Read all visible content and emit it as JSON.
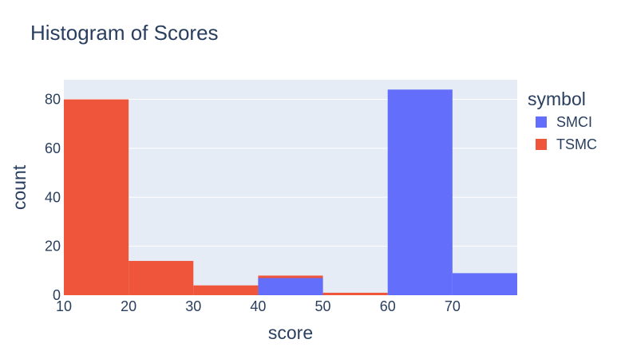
{
  "chart_data": {
    "type": "bar",
    "title": "Histogram of Scores",
    "xlabel": "score",
    "ylabel": "count",
    "bar_mode": "overlay",
    "xlim": [
      10,
      80
    ],
    "ylim": [
      0,
      88
    ],
    "x_ticks": [
      10,
      20,
      30,
      40,
      50,
      60,
      70
    ],
    "y_ticks": [
      0,
      20,
      40,
      60,
      80
    ],
    "grid": true,
    "legend": {
      "title": "symbol",
      "placement": "right"
    },
    "series": [
      {
        "name": "TSMC",
        "color": "#EF553B",
        "bins": [
          {
            "x0": 10,
            "x1": 20,
            "value": 80
          },
          {
            "x0": 20,
            "x1": 30,
            "value": 14
          },
          {
            "x0": 30,
            "x1": 40,
            "value": 4
          },
          {
            "x0": 40,
            "x1": 50,
            "value": 8
          },
          {
            "x0": 50,
            "x1": 60,
            "value": 1
          }
        ]
      },
      {
        "name": "SMCI",
        "color": "#636EFA",
        "bins": [
          {
            "x0": 40,
            "x1": 50,
            "value": 7
          },
          {
            "x0": 60,
            "x1": 70,
            "value": 84
          },
          {
            "x0": 70,
            "x1": 80,
            "value": 9
          }
        ]
      }
    ],
    "legend_order": [
      "SMCI",
      "TSMC"
    ],
    "plot_background": "#E5ECF6"
  }
}
